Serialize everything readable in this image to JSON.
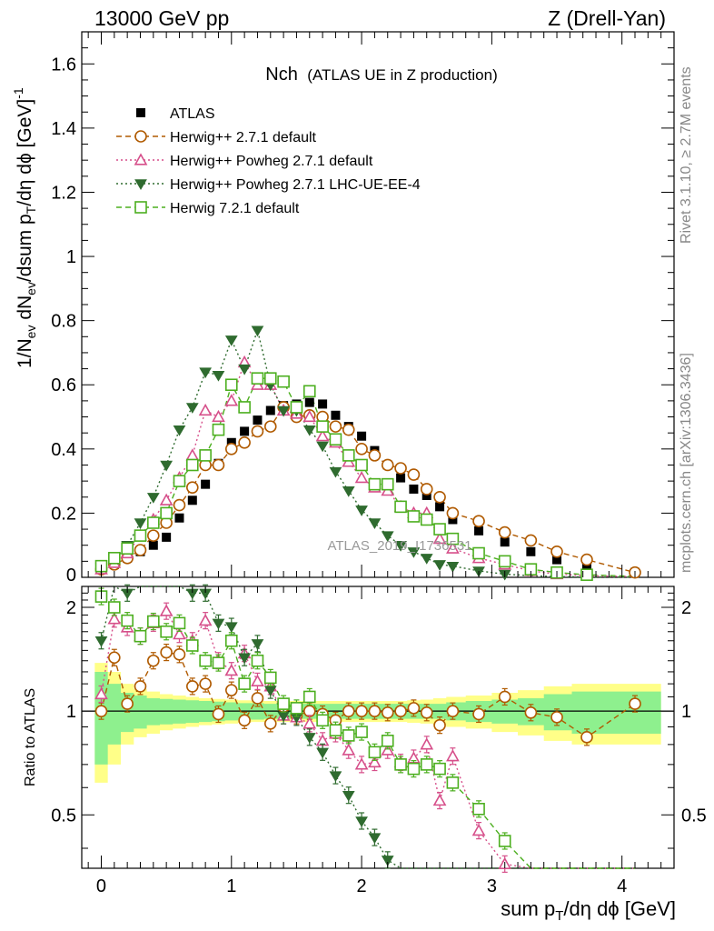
{
  "header": {
    "left": "13000 GeV pp",
    "right": "Z (Drell-Yan)"
  },
  "plot_title_main": "Nch",
  "plot_title_sub": "(ATLAS UE in Z production)",
  "analysis_label": "ATLAS_2019_I1736531",
  "side_labels": {
    "rivet": "Rivet 3.1.10, ≥ 2.7M events",
    "mcplots": "mcplots.cern.ch [arXiv:1306.3436]"
  },
  "ylabel_main": "1/N_ev dN_ev/dsum p_T/dη dϕ [GeV]^-1",
  "ylabel_ratio": "Ratio to ATLAS",
  "xlabel": "sum p_T/dη dϕ [GeV]",
  "chart_data": {
    "type": "line",
    "main": {
      "xlim": [
        -0.15,
        4.4
      ],
      "ylim": [
        0,
        1.7
      ],
      "xticks": [
        0,
        1,
        2,
        3,
        4
      ],
      "yticks": [
        0.2,
        0.4,
        0.6,
        0.8,
        1,
        1.2,
        1.4,
        1.6
      ],
      "ytick_labels": [
        "0.2",
        "0.4",
        "0.6",
        "0.8",
        "1",
        "1.2",
        "1.4",
        "1.6"
      ],
      "y0_label": "0"
    },
    "ratio": {
      "ylim": [
        0.35,
        2.3
      ],
      "yticks": [
        0.5,
        1,
        2
      ],
      "ytick_labels": [
        "0.5",
        "1",
        "2"
      ]
    },
    "x": [
      0.0,
      0.1,
      0.2,
      0.3,
      0.4,
      0.5,
      0.6,
      0.7,
      0.8,
      0.9,
      1.0,
      1.1,
      1.2,
      1.3,
      1.4,
      1.5,
      1.6,
      1.7,
      1.8,
      1.9,
      2.0,
      2.1,
      2.2,
      2.3,
      2.4,
      2.5,
      2.6,
      2.7,
      2.9,
      3.1,
      3.3,
      3.5,
      3.73,
      4.1
    ],
    "series": [
      {
        "name": "ATLAS",
        "color": "#000000",
        "values": [
          0.025,
          0.04,
          0.06,
          0.08,
          0.1,
          0.125,
          0.185,
          0.24,
          0.29,
          0.355,
          0.42,
          0.455,
          0.49,
          0.52,
          0.535,
          0.54,
          0.545,
          0.54,
          0.505,
          0.47,
          0.44,
          0.395,
          0.35,
          0.31,
          0.275,
          0.255,
          0.22,
          0.18,
          0.145,
          0.11,
          0.08,
          0.055,
          0.04,
          0.015
        ],
        "ratio_band_stat": [
          0.3,
          0.2,
          0.13,
          0.11,
          0.09,
          0.085,
          0.08,
          0.075,
          0.07,
          0.065,
          0.06,
          0.055,
          0.055,
          0.05,
          0.05,
          0.05,
          0.05,
          0.05,
          0.05,
          0.05,
          0.05,
          0.05,
          0.05,
          0.05,
          0.05,
          0.05,
          0.05,
          0.06,
          0.07,
          0.08,
          0.09,
          0.12,
          0.14,
          0.14
        ],
        "ratio_band_tot": [
          0.38,
          0.3,
          0.2,
          0.16,
          0.14,
          0.12,
          0.11,
          0.1,
          0.09,
          0.085,
          0.08,
          0.075,
          0.07,
          0.07,
          0.07,
          0.07,
          0.07,
          0.07,
          0.07,
          0.07,
          0.07,
          0.07,
          0.07,
          0.07,
          0.075,
          0.08,
          0.09,
          0.1,
          0.11,
          0.13,
          0.15,
          0.18,
          0.2,
          0.2
        ]
      },
      {
        "name": "Herwig++ 2.7.1 default",
        "color": "#b05a00",
        "marker": "open-circle",
        "dash": "6,4",
        "values": [
          0.025,
          0.04,
          0.06,
          0.085,
          0.13,
          0.17,
          0.225,
          0.28,
          0.35,
          0.35,
          0.4,
          0.42,
          0.455,
          0.47,
          0.53,
          0.5,
          0.505,
          0.5,
          0.47,
          0.46,
          0.4,
          0.38,
          0.35,
          0.34,
          0.32,
          0.275,
          0.25,
          0.2,
          0.175,
          0.14,
          0.115,
          0.08,
          0.055,
          0.015
        ],
        "ratio": [
          1.0,
          1.43,
          1.05,
          1.18,
          1.4,
          1.48,
          1.46,
          1.18,
          1.2,
          0.98,
          1.15,
          0.94,
          1.09,
          0.92,
          1.03,
          0.97,
          1.0,
          0.98,
          0.94,
          1.0,
          1.0,
          1.0,
          0.99,
          1.0,
          1.02,
          0.99,
          0.91,
          1.0,
          0.98,
          1.1,
          0.99,
          0.96,
          0.84,
          1.05
        ]
      },
      {
        "name": "Herwig++ Powheg 2.7.1 default",
        "color": "#d64f8a",
        "marker": "open-triangle",
        "dash": "2,3",
        "values": [
          0.025,
          0.045,
          0.075,
          0.13,
          0.18,
          0.24,
          0.31,
          0.38,
          0.52,
          0.5,
          0.55,
          0.67,
          0.6,
          0.6,
          0.52,
          0.51,
          0.5,
          0.44,
          0.42,
          0.36,
          0.31,
          0.28,
          0.27,
          0.22,
          0.2,
          0.2,
          0.12,
          0.09,
          0.06,
          0.04,
          0.02,
          0.01,
          0.005,
          0.002
        ],
        "ratio": [
          1.12,
          1.85,
          1.75,
          1.65,
          1.8,
          1.95,
          1.67,
          1.6,
          1.83,
          1.4,
          1.31,
          1.47,
          1.22,
          1.18,
          0.97,
          0.96,
          0.92,
          0.82,
          0.86,
          0.77,
          0.7,
          0.71,
          0.77,
          0.71,
          0.73,
          0.8,
          0.55,
          0.74,
          0.45,
          0.36,
          0.3,
          0.25,
          0.2,
          0.15
        ]
      },
      {
        "name": "Herwig++ Powheg 2.7.1 LHC-UE-EE-4",
        "color": "#2f6b2f",
        "marker": "filled-triangle-down",
        "dash": "2,3",
        "values": [
          0.03,
          0.06,
          0.1,
          0.17,
          0.25,
          0.35,
          0.46,
          0.53,
          0.64,
          0.63,
          0.74,
          0.65,
          0.77,
          0.6,
          0.52,
          0.52,
          0.46,
          0.41,
          0.33,
          0.27,
          0.21,
          0.17,
          0.13,
          0.1,
          0.08,
          0.06,
          0.04,
          0.035,
          0.02,
          0.01,
          0.005,
          0.002,
          0.001,
          0.0005
        ],
        "ratio": [
          1.6,
          2.3,
          2.2,
          2.3,
          2.5,
          2.8,
          2.5,
          2.2,
          2.2,
          1.8,
          1.76,
          1.43,
          1.57,
          1.15,
          0.97,
          0.96,
          0.84,
          0.76,
          0.65,
          0.57,
          0.48,
          0.43,
          0.37,
          0.32,
          0.29,
          0.24,
          0.18,
          0.19,
          0.14,
          0.09,
          0.06,
          0.04,
          0.025,
          0.03
        ]
      },
      {
        "name": "Herwig 7.2.1 default",
        "color": "#4caf1f",
        "marker": "open-square",
        "dash": "6,4",
        "values": [
          0.035,
          0.06,
          0.09,
          0.13,
          0.17,
          0.2,
          0.3,
          0.35,
          0.38,
          0.46,
          0.6,
          0.53,
          0.62,
          0.62,
          0.61,
          0.53,
          0.58,
          0.47,
          0.43,
          0.38,
          0.35,
          0.29,
          0.29,
          0.22,
          0.19,
          0.18,
          0.15,
          0.12,
          0.075,
          0.05,
          0.025,
          0.015,
          0.008,
          0.003
        ],
        "ratio": [
          2.15,
          2.0,
          1.83,
          1.65,
          1.82,
          1.7,
          1.8,
          1.55,
          1.4,
          1.38,
          1.6,
          1.2,
          1.4,
          1.25,
          1.05,
          1.02,
          1.1,
          0.94,
          0.88,
          0.85,
          0.87,
          0.76,
          0.82,
          0.7,
          0.68,
          0.7,
          0.68,
          0.62,
          0.52,
          0.42,
          0.33,
          0.27,
          0.22,
          0.18
        ]
      }
    ]
  }
}
